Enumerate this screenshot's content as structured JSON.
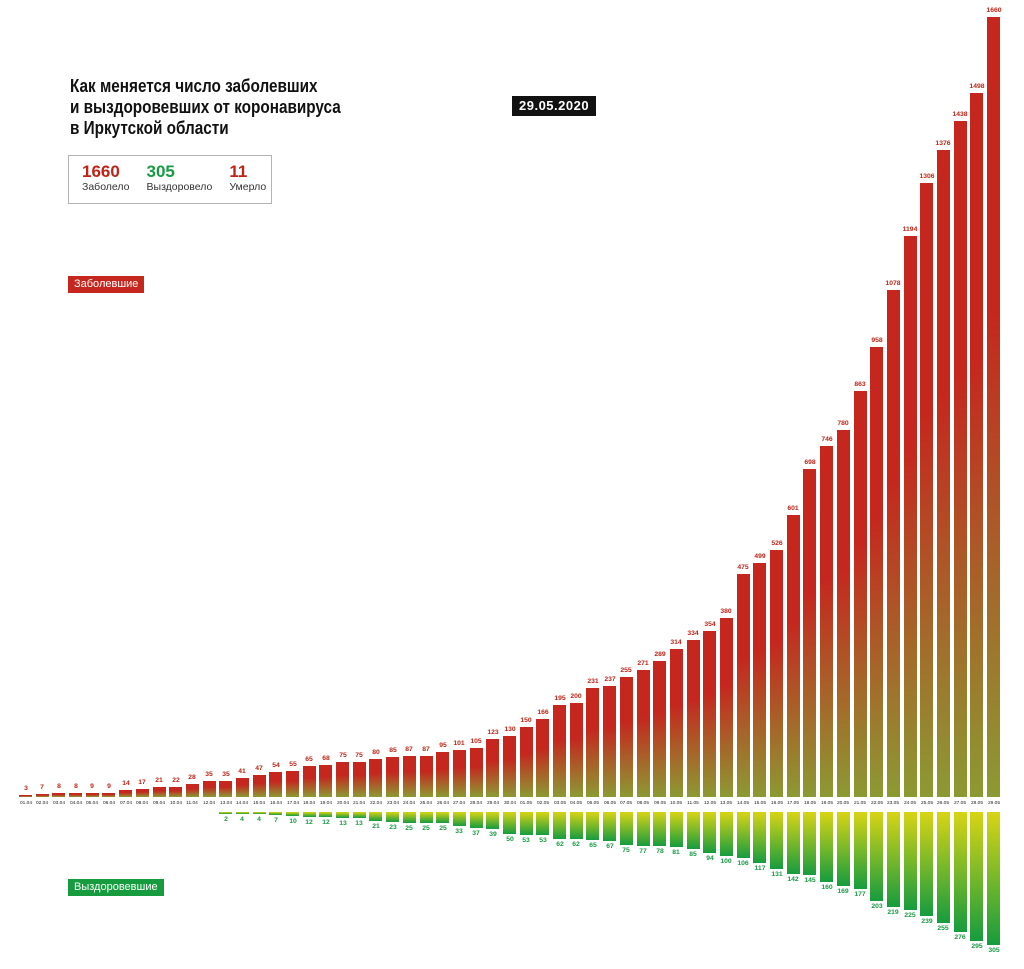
{
  "header": {
    "title_lines": [
      "Как меняется число заболевших",
      "и выздоровевших от коронавируса",
      "в Иркутской области"
    ],
    "date_badge": "29.05.2020"
  },
  "summary": {
    "infected": {
      "value": "1660",
      "label": "Заболело"
    },
    "recovered": {
      "value": "305",
      "label": "Выздоровело"
    },
    "died": {
      "value": "11",
      "label": "Умерло"
    }
  },
  "legend": {
    "infected": "Заболевшие",
    "recovered": "Выздоровевшие"
  },
  "colors": {
    "infected": "#c5271e",
    "infected_fade": "#8c9a33",
    "infected_text": "#be2418",
    "recovered": "#169c3e",
    "recovered_fade": "#d8d414",
    "recovered_text": "#189a44",
    "badge_bg": "#111111"
  },
  "chart_data": {
    "type": "bar",
    "orientation": "mirrored-vertical",
    "title": "Как меняется число заболевших и выздоровевших от коронавируса в Иркутской области",
    "gridlines": false,
    "value_labels": true,
    "legend_position": "left",
    "categories": [
      "01.04",
      "02.04",
      "03.04",
      "04.04",
      "05.04",
      "06.04",
      "07.04",
      "08.04",
      "09.04",
      "10.04",
      "11.04",
      "12.04",
      "13.04",
      "14.04",
      "15.04",
      "16.04",
      "17.04",
      "18.04",
      "19.04",
      "20.04",
      "21.04",
      "22.04",
      "23.04",
      "24.04",
      "25.04",
      "26.04",
      "27.04",
      "28.04",
      "29.04",
      "30.04",
      "01.05",
      "02.05",
      "03.05",
      "04.05",
      "05.05",
      "06.05",
      "07.05",
      "08.05",
      "09.05",
      "10.05",
      "11.05",
      "12.05",
      "13.05",
      "14.05",
      "15.05",
      "16.05",
      "17.05",
      "18.05",
      "19.05",
      "20.05",
      "21.05",
      "22.05",
      "23.05",
      "24.05",
      "25.05",
      "26.05",
      "27.05",
      "28.05",
      "29.05"
    ],
    "series": [
      {
        "name": "Заболевшие",
        "direction": "up",
        "color": "#c5271e",
        "values": [
          3,
          7,
          8,
          8,
          9,
          9,
          14,
          17,
          21,
          22,
          28,
          35,
          35,
          41,
          47,
          54,
          55,
          65,
          68,
          75,
          75,
          80,
          85,
          87,
          87,
          95,
          101,
          105,
          123,
          130,
          150,
          166,
          195,
          200,
          231,
          237,
          255,
          271,
          289,
          314,
          334,
          354,
          380,
          475,
          499,
          526,
          601,
          698,
          746,
          780,
          863,
          958,
          1078,
          1194,
          1306,
          1376,
          1438,
          1498,
          1660
        ]
      },
      {
        "name": "Выздоровевшие",
        "direction": "down",
        "color": "#169c3e",
        "values": [
          null,
          null,
          null,
          null,
          null,
          null,
          null,
          null,
          null,
          null,
          null,
          null,
          2,
          4,
          4,
          7,
          10,
          12,
          12,
          13,
          13,
          21,
          23,
          25,
          25,
          25,
          33,
          37,
          39,
          50,
          53,
          53,
          62,
          62,
          65,
          67,
          75,
          77,
          78,
          81,
          85,
          94,
          100,
          106,
          117,
          131,
          142,
          145,
          160,
          169,
          177,
          203,
          219,
          225,
          239,
          255,
          276,
          295,
          305
        ]
      }
    ]
  }
}
